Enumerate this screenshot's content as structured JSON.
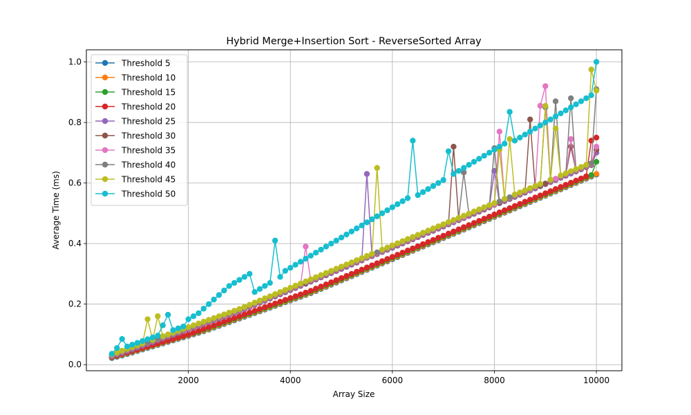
{
  "chart_data": {
    "type": "line",
    "title": "Hybrid Merge+Insertion Sort - ReverseSorted Array",
    "xlabel": "Array Size",
    "ylabel": "Average Time (ms)",
    "xlim": [
      0,
      10500
    ],
    "ylim": [
      -0.02,
      1.04
    ],
    "xticks": [
      2000,
      4000,
      6000,
      8000,
      10000
    ],
    "yticks": [
      0.0,
      0.2,
      0.4,
      0.6,
      0.8,
      1.0
    ],
    "grid": true,
    "legend_position": "upper-left",
    "marker": "circle",
    "x": [
      500,
      600,
      700,
      800,
      900,
      1000,
      1100,
      1200,
      1300,
      1400,
      1500,
      1600,
      1700,
      1800,
      1900,
      2000,
      2100,
      2200,
      2300,
      2400,
      2500,
      2600,
      2700,
      2800,
      2900,
      3000,
      3100,
      3200,
      3300,
      3400,
      3500,
      3600,
      3700,
      3800,
      3900,
      4000,
      4100,
      4200,
      4300,
      4400,
      4500,
      4600,
      4700,
      4800,
      4900,
      5000,
      5100,
      5200,
      5300,
      5400,
      5500,
      5600,
      5700,
      5800,
      5900,
      6000,
      6100,
      6200,
      6300,
      6400,
      6500,
      6600,
      6700,
      6800,
      6900,
      7000,
      7100,
      7200,
      7300,
      7400,
      7500,
      7600,
      7700,
      7800,
      7900,
      8000,
      8100,
      8200,
      8300,
      8400,
      8500,
      8600,
      8700,
      8800,
      8900,
      9000,
      9100,
      9200,
      9300,
      9400,
      9500,
      9600,
      9700,
      9800,
      9900,
      10000
    ],
    "series": [
      {
        "name": "Threshold 5",
        "color": "#1f77b4",
        "values": [
          0.022,
          0.026,
          0.03,
          0.035,
          0.04,
          0.045,
          0.05,
          0.055,
          0.06,
          0.065,
          0.07,
          0.075,
          0.08,
          0.085,
          0.09,
          0.095,
          0.1,
          0.105,
          0.11,
          0.116,
          0.122,
          0.128,
          0.134,
          0.14,
          0.146,
          0.152,
          0.158,
          0.164,
          0.17,
          0.176,
          0.182,
          0.188,
          0.194,
          0.2,
          0.206,
          0.212,
          0.218,
          0.224,
          0.23,
          0.236,
          0.243,
          0.25,
          0.257,
          0.264,
          0.271,
          0.278,
          0.285,
          0.292,
          0.299,
          0.306,
          0.313,
          0.32,
          0.327,
          0.334,
          0.341,
          0.348,
          0.355,
          0.362,
          0.369,
          0.376,
          0.383,
          0.39,
          0.397,
          0.404,
          0.411,
          0.418,
          0.425,
          0.432,
          0.439,
          0.446,
          0.453,
          0.46,
          0.467,
          0.474,
          0.481,
          0.488,
          0.495,
          0.502,
          0.509,
          0.516,
          0.523,
          0.53,
          0.537,
          0.544,
          0.551,
          0.558,
          0.565,
          0.572,
          0.579,
          0.586,
          0.593,
          0.6,
          0.607,
          0.614,
          0.621,
          0.628
        ]
      },
      {
        "name": "Threshold 10",
        "color": "#ff7f0e",
        "values": [
          0.024,
          0.028,
          0.032,
          0.037,
          0.042,
          0.047,
          0.052,
          0.057,
          0.062,
          0.067,
          0.072,
          0.077,
          0.082,
          0.087,
          0.092,
          0.097,
          0.102,
          0.107,
          0.112,
          0.118,
          0.124,
          0.13,
          0.136,
          0.142,
          0.148,
          0.154,
          0.16,
          0.166,
          0.172,
          0.178,
          0.184,
          0.19,
          0.196,
          0.202,
          0.208,
          0.214,
          0.22,
          0.226,
          0.232,
          0.238,
          0.245,
          0.252,
          0.259,
          0.266,
          0.273,
          0.28,
          0.287,
          0.294,
          0.301,
          0.308,
          0.315,
          0.322,
          0.329,
          0.336,
          0.343,
          0.35,
          0.357,
          0.364,
          0.371,
          0.378,
          0.385,
          0.392,
          0.399,
          0.406,
          0.413,
          0.42,
          0.427,
          0.434,
          0.441,
          0.448,
          0.455,
          0.462,
          0.469,
          0.476,
          0.483,
          0.49,
          0.497,
          0.504,
          0.511,
          0.518,
          0.525,
          0.532,
          0.539,
          0.546,
          0.553,
          0.56,
          0.567,
          0.574,
          0.581,
          0.588,
          0.595,
          0.602,
          0.609,
          0.616,
          0.623,
          0.63
        ]
      },
      {
        "name": "Threshold 15",
        "color": "#2ca02c",
        "values": [
          0.025,
          0.029,
          0.034,
          0.039,
          0.044,
          0.049,
          0.054,
          0.059,
          0.064,
          0.069,
          0.074,
          0.079,
          0.084,
          0.089,
          0.094,
          0.099,
          0.104,
          0.109,
          0.115,
          0.121,
          0.127,
          0.133,
          0.139,
          0.145,
          0.151,
          0.157,
          0.163,
          0.169,
          0.175,
          0.181,
          0.187,
          0.193,
          0.199,
          0.205,
          0.211,
          0.217,
          0.223,
          0.229,
          0.235,
          0.241,
          0.248,
          0.255,
          0.262,
          0.269,
          0.276,
          0.283,
          0.29,
          0.297,
          0.304,
          0.311,
          0.318,
          0.325,
          0.332,
          0.339,
          0.346,
          0.353,
          0.36,
          0.367,
          0.374,
          0.381,
          0.388,
          0.395,
          0.402,
          0.409,
          0.416,
          0.423,
          0.43,
          0.437,
          0.444,
          0.451,
          0.458,
          0.465,
          0.472,
          0.479,
          0.486,
          0.493,
          0.5,
          0.507,
          0.514,
          0.521,
          0.528,
          0.535,
          0.542,
          0.549,
          0.556,
          0.563,
          0.57,
          0.577,
          0.584,
          0.591,
          0.598,
          0.605,
          0.612,
          0.619,
          0.626,
          0.67
        ]
      },
      {
        "name": "Threshold 20",
        "color": "#d62728",
        "values": [
          0.026,
          0.03,
          0.035,
          0.04,
          0.045,
          0.05,
          0.055,
          0.06,
          0.065,
          0.07,
          0.075,
          0.08,
          0.085,
          0.09,
          0.095,
          0.1,
          0.106,
          0.112,
          0.118,
          0.124,
          0.13,
          0.136,
          0.142,
          0.148,
          0.154,
          0.16,
          0.166,
          0.172,
          0.178,
          0.184,
          0.19,
          0.196,
          0.202,
          0.208,
          0.214,
          0.22,
          0.226,
          0.232,
          0.238,
          0.244,
          0.251,
          0.258,
          0.265,
          0.272,
          0.279,
          0.286,
          0.293,
          0.3,
          0.307,
          0.314,
          0.321,
          0.328,
          0.335,
          0.342,
          0.349,
          0.356,
          0.363,
          0.37,
          0.377,
          0.384,
          0.391,
          0.398,
          0.405,
          0.412,
          0.419,
          0.426,
          0.433,
          0.44,
          0.447,
          0.454,
          0.461,
          0.468,
          0.475,
          0.482,
          0.489,
          0.496,
          0.503,
          0.51,
          0.517,
          0.524,
          0.531,
          0.538,
          0.545,
          0.552,
          0.559,
          0.566,
          0.573,
          0.58,
          0.587,
          0.594,
          0.601,
          0.608,
          0.615,
          0.622,
          0.74,
          0.75
        ]
      },
      {
        "name": "Threshold 25",
        "color": "#9467bd",
        "values": [
          0.028,
          0.033,
          0.038,
          0.044,
          0.05,
          0.056,
          0.062,
          0.068,
          0.074,
          0.08,
          0.086,
          0.092,
          0.098,
          0.104,
          0.11,
          0.116,
          0.122,
          0.128,
          0.134,
          0.14,
          0.146,
          0.152,
          0.158,
          0.164,
          0.17,
          0.176,
          0.183,
          0.19,
          0.197,
          0.204,
          0.211,
          0.218,
          0.225,
          0.232,
          0.239,
          0.246,
          0.253,
          0.26,
          0.267,
          0.274,
          0.281,
          0.288,
          0.295,
          0.302,
          0.309,
          0.316,
          0.323,
          0.33,
          0.337,
          0.344,
          0.63,
          0.358,
          0.365,
          0.372,
          0.379,
          0.386,
          0.393,
          0.4,
          0.407,
          0.414,
          0.421,
          0.428,
          0.435,
          0.442,
          0.449,
          0.456,
          0.463,
          0.47,
          0.477,
          0.484,
          0.491,
          0.498,
          0.505,
          0.512,
          0.519,
          0.64,
          0.533,
          0.54,
          0.547,
          0.554,
          0.561,
          0.568,
          0.575,
          0.582,
          0.589,
          0.596,
          0.603,
          0.61,
          0.617,
          0.624,
          0.631,
          0.638,
          0.645,
          0.652,
          0.659,
          0.7
        ]
      },
      {
        "name": "Threshold 30",
        "color": "#8c564b",
        "values": [
          0.029,
          0.034,
          0.04,
          0.046,
          0.052,
          0.058,
          0.064,
          0.07,
          0.076,
          0.082,
          0.088,
          0.094,
          0.1,
          0.106,
          0.112,
          0.118,
          0.124,
          0.13,
          0.136,
          0.142,
          0.148,
          0.154,
          0.16,
          0.166,
          0.172,
          0.178,
          0.185,
          0.192,
          0.199,
          0.206,
          0.213,
          0.22,
          0.227,
          0.234,
          0.241,
          0.248,
          0.255,
          0.262,
          0.269,
          0.276,
          0.283,
          0.29,
          0.297,
          0.304,
          0.311,
          0.318,
          0.325,
          0.332,
          0.339,
          0.346,
          0.353,
          0.36,
          0.367,
          0.374,
          0.381,
          0.388,
          0.395,
          0.402,
          0.409,
          0.416,
          0.423,
          0.43,
          0.437,
          0.444,
          0.451,
          0.458,
          0.465,
          0.72,
          0.479,
          0.486,
          0.493,
          0.5,
          0.507,
          0.514,
          0.521,
          0.528,
          0.535,
          0.542,
          0.549,
          0.556,
          0.563,
          0.57,
          0.81,
          0.584,
          0.591,
          0.598,
          0.605,
          0.612,
          0.619,
          0.626,
          0.72,
          0.64,
          0.647,
          0.654,
          0.661,
          0.71
        ]
      },
      {
        "name": "Threshold 35",
        "color": "#e377c2",
        "values": [
          0.03,
          0.036,
          0.042,
          0.048,
          0.054,
          0.06,
          0.066,
          0.072,
          0.078,
          0.084,
          0.09,
          0.096,
          0.102,
          0.108,
          0.114,
          0.12,
          0.126,
          0.132,
          0.138,
          0.144,
          0.15,
          0.156,
          0.162,
          0.168,
          0.174,
          0.18,
          0.187,
          0.194,
          0.201,
          0.208,
          0.215,
          0.222,
          0.229,
          0.236,
          0.243,
          0.25,
          0.257,
          0.264,
          0.39,
          0.278,
          0.285,
          0.292,
          0.299,
          0.306,
          0.313,
          0.32,
          0.327,
          0.334,
          0.341,
          0.348,
          0.355,
          0.362,
          0.369,
          0.376,
          0.383,
          0.39,
          0.397,
          0.404,
          0.411,
          0.418,
          0.425,
          0.432,
          0.439,
          0.446,
          0.453,
          0.46,
          0.467,
          0.474,
          0.481,
          0.488,
          0.495,
          0.502,
          0.509,
          0.516,
          0.523,
          0.53,
          0.77,
          0.544,
          0.551,
          0.558,
          0.565,
          0.572,
          0.579,
          0.586,
          0.855,
          0.92,
          0.607,
          0.614,
          0.621,
          0.628,
          0.745,
          0.642,
          0.649,
          0.656,
          0.663,
          0.72
        ]
      },
      {
        "name": "Threshold 40",
        "color": "#7f7f7f",
        "values": [
          0.032,
          0.038,
          0.044,
          0.05,
          0.056,
          0.062,
          0.068,
          0.074,
          0.08,
          0.086,
          0.092,
          0.098,
          0.104,
          0.11,
          0.116,
          0.122,
          0.128,
          0.134,
          0.14,
          0.146,
          0.152,
          0.158,
          0.164,
          0.17,
          0.176,
          0.182,
          0.189,
          0.196,
          0.203,
          0.21,
          0.217,
          0.224,
          0.231,
          0.238,
          0.245,
          0.252,
          0.259,
          0.266,
          0.273,
          0.28,
          0.287,
          0.294,
          0.301,
          0.308,
          0.315,
          0.322,
          0.329,
          0.336,
          0.343,
          0.35,
          0.357,
          0.364,
          0.371,
          0.378,
          0.385,
          0.392,
          0.399,
          0.406,
          0.413,
          0.42,
          0.427,
          0.434,
          0.441,
          0.448,
          0.455,
          0.462,
          0.469,
          0.476,
          0.483,
          0.635,
          0.497,
          0.504,
          0.511,
          0.518,
          0.525,
          0.715,
          0.539,
          0.546,
          0.553,
          0.56,
          0.567,
          0.574,
          0.581,
          0.588,
          0.595,
          0.85,
          0.609,
          0.87,
          0.623,
          0.63,
          0.88,
          0.644,
          0.651,
          0.658,
          0.665,
          0.91
        ]
      },
      {
        "name": "Threshold 45",
        "color": "#bcbd22",
        "values": [
          0.034,
          0.04,
          0.046,
          0.052,
          0.058,
          0.064,
          0.07,
          0.15,
          0.082,
          0.16,
          0.094,
          0.1,
          0.106,
          0.112,
          0.118,
          0.124,
          0.13,
          0.136,
          0.142,
          0.148,
          0.154,
          0.16,
          0.166,
          0.172,
          0.178,
          0.184,
          0.191,
          0.198,
          0.205,
          0.212,
          0.219,
          0.226,
          0.233,
          0.24,
          0.247,
          0.254,
          0.261,
          0.268,
          0.275,
          0.282,
          0.289,
          0.296,
          0.303,
          0.31,
          0.317,
          0.324,
          0.331,
          0.338,
          0.345,
          0.352,
          0.359,
          0.366,
          0.65,
          0.38,
          0.387,
          0.394,
          0.401,
          0.408,
          0.415,
          0.422,
          0.429,
          0.436,
          0.443,
          0.45,
          0.457,
          0.464,
          0.471,
          0.478,
          0.485,
          0.492,
          0.499,
          0.506,
          0.513,
          0.52,
          0.527,
          0.534,
          0.71,
          0.548,
          0.745,
          0.562,
          0.569,
          0.576,
          0.583,
          0.59,
          0.597,
          0.855,
          0.611,
          0.78,
          0.625,
          0.632,
          0.639,
          0.646,
          0.653,
          0.66,
          0.975,
          0.905
        ]
      },
      {
        "name": "Threshold 50",
        "color": "#17becf",
        "values": [
          0.036,
          0.055,
          0.085,
          0.06,
          0.066,
          0.072,
          0.078,
          0.084,
          0.09,
          0.096,
          0.13,
          0.165,
          0.114,
          0.12,
          0.126,
          0.15,
          0.16,
          0.17,
          0.185,
          0.2,
          0.215,
          0.23,
          0.245,
          0.26,
          0.27,
          0.28,
          0.29,
          0.3,
          0.24,
          0.25,
          0.26,
          0.27,
          0.41,
          0.29,
          0.31,
          0.32,
          0.33,
          0.34,
          0.35,
          0.36,
          0.37,
          0.38,
          0.39,
          0.4,
          0.41,
          0.42,
          0.43,
          0.44,
          0.45,
          0.46,
          0.47,
          0.48,
          0.49,
          0.5,
          0.51,
          0.52,
          0.53,
          0.54,
          0.55,
          0.74,
          0.56,
          0.57,
          0.58,
          0.59,
          0.6,
          0.61,
          0.705,
          0.63,
          0.64,
          0.65,
          0.66,
          0.67,
          0.68,
          0.69,
          0.7,
          0.71,
          0.72,
          0.73,
          0.835,
          0.74,
          0.75,
          0.76,
          0.77,
          0.78,
          0.79,
          0.8,
          0.81,
          0.82,
          0.83,
          0.84,
          0.85,
          0.86,
          0.87,
          0.88,
          0.89,
          1.0
        ]
      }
    ]
  }
}
